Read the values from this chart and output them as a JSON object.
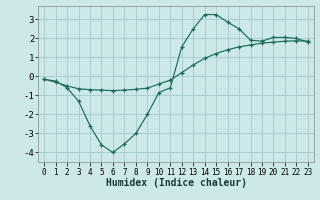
{
  "xlabel": "Humidex (Indice chaleur)",
  "ylabel": "",
  "background_color": "#cce8e8",
  "grid_color": "#aacfcf",
  "line_color": "#1a6b5a",
  "xlim": [
    -0.5,
    23.5
  ],
  "ylim": [
    -4.5,
    3.7
  ],
  "yticks": [
    -4,
    -3,
    -2,
    -1,
    0,
    1,
    2,
    3
  ],
  "xticks": [
    0,
    1,
    2,
    3,
    4,
    5,
    6,
    7,
    8,
    9,
    10,
    11,
    12,
    13,
    14,
    15,
    16,
    17,
    18,
    19,
    20,
    21,
    22,
    23
  ],
  "series1_x": [
    0,
    1,
    2,
    3,
    4,
    5,
    6,
    7,
    8,
    9,
    10,
    11,
    12,
    13,
    14,
    15,
    16,
    17,
    18,
    19,
    20,
    21,
    22,
    23
  ],
  "series1_y": [
    -0.15,
    -0.25,
    -0.6,
    -1.3,
    -2.6,
    -3.6,
    -4.0,
    -3.55,
    -3.0,
    -2.0,
    -0.85,
    -0.6,
    1.55,
    2.5,
    3.25,
    3.25,
    2.85,
    2.5,
    1.9,
    1.85,
    2.05,
    2.05,
    2.0,
    1.8
  ],
  "series2_x": [
    0,
    1,
    2,
    3,
    4,
    5,
    6,
    7,
    8,
    9,
    10,
    11,
    12,
    13,
    14,
    15,
    16,
    17,
    18,
    19,
    20,
    21,
    22,
    23
  ],
  "series2_y": [
    -0.15,
    -0.3,
    -0.5,
    -0.65,
    -0.7,
    -0.72,
    -0.75,
    -0.72,
    -0.68,
    -0.62,
    -0.4,
    -0.2,
    0.2,
    0.6,
    0.95,
    1.2,
    1.4,
    1.55,
    1.65,
    1.75,
    1.8,
    1.85,
    1.87,
    1.85
  ],
  "xlabel_fontsize": 7.0,
  "tick_fontsize": 5.5,
  "ytick_fontsize": 6.5
}
